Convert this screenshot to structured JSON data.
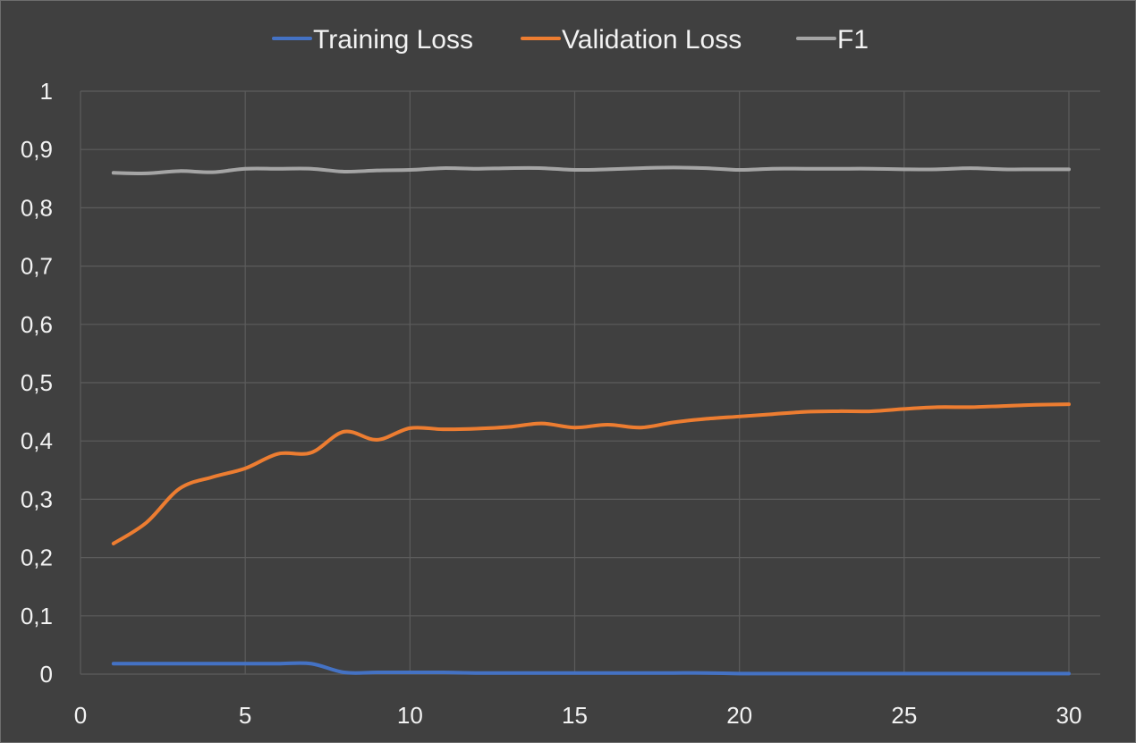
{
  "chart_data": {
    "type": "line",
    "title": "",
    "xlabel": "",
    "ylabel": "",
    "xlim": [
      0,
      30
    ],
    "ylim": [
      0,
      1
    ],
    "grid": true,
    "legend_position": "top",
    "x_ticks": [
      "0",
      "5",
      "10",
      "15",
      "20",
      "25",
      "30"
    ],
    "y_ticks": [
      "0",
      "0,1",
      "0,2",
      "0,3",
      "0,4",
      "0,5",
      "0,6",
      "0,7",
      "0,8",
      "0,9",
      "1"
    ],
    "x": [
      1,
      2,
      3,
      4,
      5,
      6,
      7,
      8,
      9,
      10,
      11,
      12,
      13,
      14,
      15,
      16,
      17,
      18,
      19,
      20,
      21,
      22,
      23,
      24,
      25,
      26,
      27,
      28,
      29,
      30
    ],
    "series": [
      {
        "name": "Training Loss",
        "color": "#4472C4",
        "values": [
          0.018,
          0.018,
          0.018,
          0.018,
          0.018,
          0.018,
          0.018,
          0.003,
          0.003,
          0.003,
          0.003,
          0.002,
          0.002,
          0.002,
          0.002,
          0.002,
          0.002,
          0.002,
          0.002,
          0.001,
          0.001,
          0.001,
          0.001,
          0.001,
          0.001,
          0.001,
          0.001,
          0.001,
          0.001,
          0.001
        ]
      },
      {
        "name": "Validation Loss",
        "color": "#ED7D31",
        "values": [
          0.224,
          0.26,
          0.318,
          0.338,
          0.353,
          0.378,
          0.38,
          0.416,
          0.402,
          0.422,
          0.42,
          0.421,
          0.424,
          0.43,
          0.423,
          0.428,
          0.423,
          0.432,
          0.438,
          0.442,
          0.446,
          0.45,
          0.451,
          0.451,
          0.455,
          0.458,
          0.458,
          0.46,
          0.462,
          0.463
        ]
      },
      {
        "name": "F1",
        "color": "#A5A5A5",
        "values": [
          0.86,
          0.859,
          0.863,
          0.861,
          0.867,
          0.867,
          0.867,
          0.862,
          0.864,
          0.865,
          0.868,
          0.867,
          0.868,
          0.868,
          0.865,
          0.866,
          0.868,
          0.869,
          0.868,
          0.865,
          0.867,
          0.867,
          0.867,
          0.867,
          0.866,
          0.866,
          0.868,
          0.866,
          0.866,
          0.866
        ]
      }
    ]
  }
}
